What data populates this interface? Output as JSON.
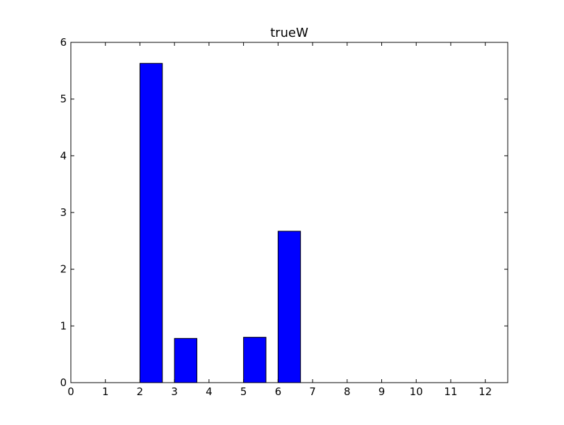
{
  "chart_data": {
    "type": "bar",
    "title": "trueW",
    "xlabel": "",
    "ylabel": "",
    "xlim": [
      0,
      12.65
    ],
    "ylim": [
      0,
      6
    ],
    "bar_width": 0.65,
    "x": [
      0,
      1,
      2,
      3,
      4,
      5,
      6,
      7,
      8,
      9,
      10,
      11,
      12
    ],
    "values": [
      0,
      0,
      5.63,
      0.78,
      0,
      0.8,
      2.67,
      0,
      0,
      0,
      0,
      0,
      0
    ],
    "xticks": [
      "0",
      "1",
      "2",
      "3",
      "4",
      "5",
      "6",
      "7",
      "8",
      "9",
      "10",
      "11",
      "12"
    ],
    "yticks": [
      "0",
      "1",
      "2",
      "3",
      "4",
      "5",
      "6"
    ],
    "grid": false,
    "bar_color": "#0000ff",
    "edge_color": "#000000"
  }
}
